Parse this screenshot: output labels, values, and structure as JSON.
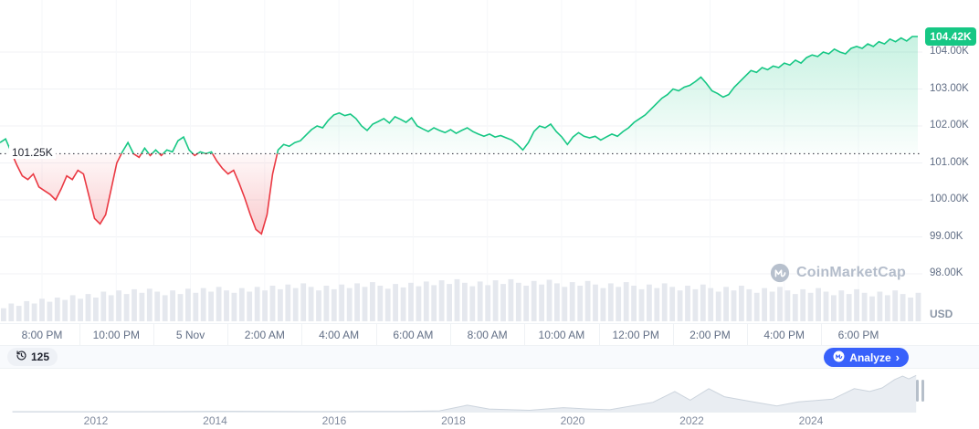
{
  "watermark": {
    "label": "CoinMarketCap",
    "icon": "coinmarketcap-logo"
  },
  "controls": {
    "history_count": "125",
    "analyze_label": "Analyze",
    "analyze_chevron": "›"
  },
  "chart_data": [
    {
      "id": "intraday-price",
      "type": "area",
      "baseline": 101.25,
      "baseline_label": "101.25K",
      "last_price": 104.42,
      "last_price_label": "104.42K",
      "unit": "USD",
      "ylim": [
        97.8,
        104.9
      ],
      "grid": true,
      "y_ticks": [
        "104.00K",
        "103.00K",
        "102.00K",
        "101.00K",
        "100.00K",
        "99.00K",
        "98.00K"
      ],
      "y_tick_values": [
        104,
        103,
        102,
        101,
        100,
        99,
        98
      ],
      "x_ticks": [
        "8:00 PM",
        "10:00 PM",
        "5 Nov",
        "2:00 AM",
        "4:00 AM",
        "6:00 AM",
        "8:00 AM",
        "10:00 AM",
        "12:00 PM",
        "2:00 PM",
        "4:00 PM",
        "6:00 PM"
      ],
      "colors": {
        "up": "#16c784",
        "down": "#ea3943",
        "volume": "#e5e8ee",
        "baseline": "#222531",
        "grid": "#f0f2f5",
        "accent": "#3861fb"
      },
      "prices": [
        101.55,
        101.65,
        101.3,
        100.95,
        100.65,
        100.55,
        100.7,
        100.35,
        100.25,
        100.15,
        100.0,
        100.3,
        100.65,
        100.55,
        100.8,
        100.7,
        100.1,
        99.5,
        99.35,
        99.6,
        100.3,
        101.0,
        101.3,
        101.55,
        101.25,
        101.15,
        101.4,
        101.2,
        101.35,
        101.2,
        101.35,
        101.3,
        101.6,
        101.7,
        101.35,
        101.2,
        101.3,
        101.25,
        101.3,
        101.05,
        100.85,
        100.7,
        100.8,
        100.45,
        100.05,
        99.6,
        99.2,
        99.08,
        99.6,
        100.7,
        101.35,
        101.5,
        101.45,
        101.55,
        101.6,
        101.75,
        101.9,
        102.0,
        101.95,
        102.15,
        102.3,
        102.35,
        102.28,
        102.32,
        102.2,
        102.0,
        101.88,
        102.05,
        102.12,
        102.2,
        102.08,
        102.25,
        102.18,
        102.1,
        102.22,
        102.0,
        101.92,
        101.85,
        101.95,
        101.88,
        101.82,
        101.9,
        101.8,
        101.88,
        101.95,
        101.85,
        101.78,
        101.72,
        101.78,
        101.7,
        101.74,
        101.68,
        101.62,
        101.5,
        101.35,
        101.55,
        101.85,
        102.0,
        101.95,
        102.05,
        101.85,
        101.7,
        101.5,
        101.7,
        101.82,
        101.72,
        101.68,
        101.72,
        101.62,
        101.7,
        101.78,
        101.72,
        101.85,
        101.95,
        102.1,
        102.2,
        102.3,
        102.45,
        102.6,
        102.75,
        102.85,
        103.0,
        102.95,
        103.05,
        103.1,
        103.2,
        103.32,
        103.15,
        102.95,
        102.88,
        102.78,
        102.85,
        103.05,
        103.2,
        103.35,
        103.5,
        103.45,
        103.58,
        103.52,
        103.62,
        103.58,
        103.7,
        103.65,
        103.78,
        103.7,
        103.85,
        103.92,
        103.88,
        104.0,
        103.95,
        104.08,
        104.0,
        103.95,
        104.1,
        104.15,
        104.1,
        104.22,
        104.15,
        104.28,
        104.22,
        104.35,
        104.28,
        104.38,
        104.3,
        104.42,
        104.42
      ],
      "volume": [
        0.22,
        0.3,
        0.26,
        0.34,
        0.3,
        0.38,
        0.33,
        0.4,
        0.36,
        0.44,
        0.38,
        0.46,
        0.4,
        0.5,
        0.44,
        0.52,
        0.46,
        0.54,
        0.48,
        0.55,
        0.5,
        0.44,
        0.52,
        0.46,
        0.55,
        0.48,
        0.56,
        0.5,
        0.58,
        0.52,
        0.48,
        0.56,
        0.5,
        0.58,
        0.52,
        0.6,
        0.54,
        0.62,
        0.56,
        0.64,
        0.58,
        0.52,
        0.6,
        0.54,
        0.62,
        0.56,
        0.64,
        0.58,
        0.66,
        0.6,
        0.55,
        0.63,
        0.57,
        0.65,
        0.59,
        0.67,
        0.61,
        0.69,
        0.63,
        0.71,
        0.65,
        0.59,
        0.67,
        0.61,
        0.69,
        0.63,
        0.71,
        0.65,
        0.6,
        0.68,
        0.62,
        0.7,
        0.64,
        0.58,
        0.66,
        0.6,
        0.68,
        0.62,
        0.56,
        0.64,
        0.58,
        0.66,
        0.6,
        0.54,
        0.62,
        0.56,
        0.64,
        0.58,
        0.52,
        0.6,
        0.54,
        0.62,
        0.56,
        0.5,
        0.58,
        0.52,
        0.6,
        0.54,
        0.48,
        0.56,
        0.5,
        0.58,
        0.52,
        0.46,
        0.54,
        0.48,
        0.56,
        0.5,
        0.44,
        0.52,
        0.46,
        0.54,
        0.48,
        0.42,
        0.5,
        0.44,
        0.52,
        0.46,
        0.4,
        0.48
      ]
    },
    {
      "id": "history-minimap",
      "type": "area",
      "x_ticks": [
        "2012",
        "2014",
        "2016",
        "2018",
        "2020",
        "2022",
        "2024"
      ],
      "x_domain": [
        2010.4,
        2025.3
      ],
      "y_max": 110,
      "points": [
        [
          2010.6,
          0.05
        ],
        [
          2011.5,
          0.05
        ],
        [
          2012.5,
          0.1
        ],
        [
          2013.3,
          0.3
        ],
        [
          2013.95,
          1.1
        ],
        [
          2014.6,
          0.5
        ],
        [
          2015.3,
          0.3
        ],
        [
          2016.2,
          0.5
        ],
        [
          2016.9,
          0.9
        ],
        [
          2017.5,
          2.4
        ],
        [
          2017.95,
          18.5
        ],
        [
          2018.3,
          7.5
        ],
        [
          2018.95,
          3.8
        ],
        [
          2019.5,
          11.5
        ],
        [
          2019.9,
          7.5
        ],
        [
          2020.25,
          5.5
        ],
        [
          2020.95,
          27
        ],
        [
          2021.3,
          58
        ],
        [
          2021.55,
          33
        ],
        [
          2021.85,
          66
        ],
        [
          2022.1,
          43
        ],
        [
          2022.5,
          30
        ],
        [
          2022.95,
          16.5
        ],
        [
          2023.3,
          28
        ],
        [
          2023.85,
          36
        ],
        [
          2024.2,
          66
        ],
        [
          2024.45,
          58
        ],
        [
          2024.65,
          68
        ],
        [
          2024.85,
          92
        ],
        [
          2024.98,
          102
        ],
        [
          2025.08,
          94
        ],
        [
          2025.2,
          104
        ]
      ]
    }
  ]
}
